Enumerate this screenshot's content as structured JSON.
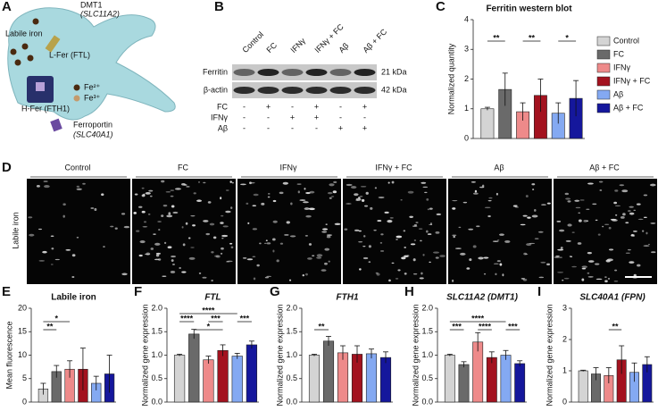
{
  "panels": [
    "A",
    "B",
    "C",
    "D",
    "E",
    "F",
    "G",
    "H",
    "I"
  ],
  "diagram": {
    "dmt1": "DMT1",
    "dmt1_gene": "(SLC11A2)",
    "labile": "Labile iron",
    "lfer": "L-Fer (FTL)",
    "hfer": "H-Fer (FTH1)",
    "fe2": "Fe²⁺",
    "fe3": "Fe³⁺",
    "fpn": "Ferroportin",
    "fpn_gene": "(SLC40A1)"
  },
  "blot": {
    "lanes": [
      "Control",
      "FC",
      "IFNγ",
      "IFNγ + FC",
      "Aβ",
      "Aβ + FC"
    ],
    "rows": [
      "Ferritin",
      "β-actin"
    ],
    "sizes": [
      "21 kDa",
      "42 kDa"
    ],
    "treatments": [
      {
        "name": "FC",
        "marks": [
          "-",
          "+",
          "-",
          "+",
          "-",
          "+"
        ]
      },
      {
        "name": "IFNγ",
        "marks": [
          "-",
          "-",
          "+",
          "+",
          "-",
          "-"
        ]
      },
      {
        "name": "Aβ",
        "marks": [
          "-",
          "-",
          "-",
          "-",
          "+",
          "+"
        ]
      }
    ]
  },
  "images": {
    "labels": [
      "Control",
      "FC",
      "IFNγ",
      "IFNγ + FC",
      "Aβ",
      "Aβ + FC"
    ],
    "ylabel": "Labile iron"
  },
  "chart_data": [
    {
      "type": "bar",
      "title": "Ferritin western blot",
      "ylabel": "Normalized quantity",
      "categories": [
        "Control",
        "FC",
        "IFNγ",
        "IFNγ + FC",
        "Aβ",
        "Aβ + FC"
      ],
      "colors": [
        "#d4d4d4",
        "#6a6a6a",
        "#ee8a8a",
        "#a3121f",
        "#84a9f2",
        "#15179c"
      ],
      "values": [
        1,
        1.65,
        0.9,
        1.45,
        0.85,
        1.35
      ],
      "errors": [
        0.05,
        0.55,
        0.3,
        0.55,
        0.35,
        0.6
      ],
      "ylim": [
        0,
        4
      ],
      "yticks": [
        0,
        1,
        2,
        3,
        4
      ],
      "annotations": [
        "**",
        "**",
        "*"
      ],
      "legend": "right"
    },
    {
      "type": "bar",
      "title": "Labile iron",
      "ylabel": "Mean fluorescence",
      "colors": [
        "#d4d4d4",
        "#6a6a6a",
        "#ee8a8a",
        "#a3121f",
        "#84a9f2",
        "#15179c"
      ],
      "values": [
        2.8,
        6.5,
        7,
        7,
        4,
        6
      ],
      "errors": [
        1.2,
        1.3,
        1.8,
        4.5,
        1.5,
        4
      ],
      "ylim": [
        0,
        20
      ],
      "yticks": [
        0,
        5,
        10,
        15,
        20
      ],
      "annotations": [
        "**",
        "*"
      ]
    },
    {
      "type": "bar",
      "title": "FTL",
      "ylabel": "Normalized gene expression",
      "colors": [
        "#d4d4d4",
        "#6a6a6a",
        "#ee8a8a",
        "#a3121f",
        "#84a9f2",
        "#15179c"
      ],
      "values": [
        1,
        1.45,
        0.9,
        1.1,
        0.98,
        1.22
      ],
      "errors": [
        0.02,
        0.1,
        0.08,
        0.12,
        0.06,
        0.08
      ],
      "ylim": [
        0,
        2
      ],
      "yticks": [
        {
          "value": 0,
          "label": "0.0"
        },
        0.5,
        {
          "value": 1,
          "label": "1.0"
        },
        1.5,
        {
          "value": 2,
          "label": "2.0"
        }
      ],
      "annotations": [
        "****",
        "*",
        "***",
        "****",
        "***"
      ]
    },
    {
      "type": "bar",
      "title": "FTH1",
      "ylabel": "Normalized gene expression",
      "colors": [
        "#d4d4d4",
        "#6a6a6a",
        "#ee8a8a",
        "#a3121f",
        "#84a9f2",
        "#15179c"
      ],
      "values": [
        1,
        1.3,
        1.05,
        1.02,
        1.03,
        0.95
      ],
      "errors": [
        0.02,
        0.1,
        0.15,
        0.18,
        0.1,
        0.12
      ],
      "ylim": [
        0,
        2
      ],
      "yticks": [
        {
          "value": 0,
          "label": "0.0"
        },
        0.5,
        {
          "value": 1,
          "label": "1.0"
        },
        1.5,
        {
          "value": 2,
          "label": "2.0"
        }
      ],
      "annotations": [
        "**"
      ]
    },
    {
      "type": "bar",
      "title": "SLC11A2 (DMT1)",
      "ylabel": "Normalized gene expression",
      "colors": [
        "#d4d4d4",
        "#6a6a6a",
        "#ee8a8a",
        "#a3121f",
        "#84a9f2",
        "#15179c"
      ],
      "values": [
        1,
        0.8,
        1.28,
        0.95,
        1.0,
        0.82
      ],
      "errors": [
        0.02,
        0.06,
        0.2,
        0.12,
        0.1,
        0.06
      ],
      "ylim": [
        0,
        2
      ],
      "yticks": [
        {
          "value": 0,
          "label": "0.0"
        },
        0.5,
        {
          "value": 1,
          "label": "1.0"
        },
        1.5,
        {
          "value": 2,
          "label": "2.0"
        }
      ],
      "annotations": [
        "***",
        "****",
        "****",
        "***"
      ]
    },
    {
      "type": "bar",
      "title": "SLC40A1 (FPN)",
      "ylabel": "Normalized gene expression",
      "colors": [
        "#d4d4d4",
        "#6a6a6a",
        "#ee8a8a",
        "#a3121f",
        "#84a9f2",
        "#15179c"
      ],
      "values": [
        1,
        0.9,
        0.85,
        1.35,
        0.95,
        1.2
      ],
      "errors": [
        0.02,
        0.2,
        0.25,
        0.45,
        0.3,
        0.25
      ],
      "ylim": [
        0,
        3
      ],
      "yticks": [
        0,
        1,
        2,
        3
      ],
      "annotations": [
        "**"
      ]
    }
  ]
}
